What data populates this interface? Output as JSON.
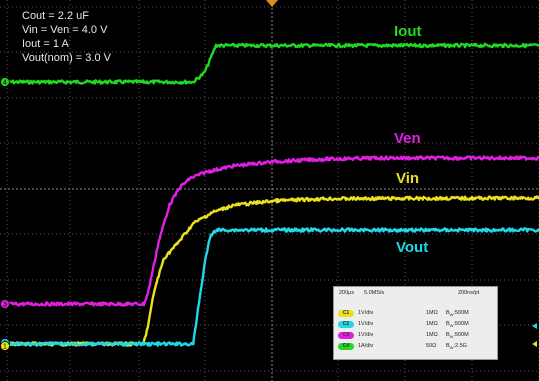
{
  "chart_data": {
    "type": "line",
    "title": "",
    "xlabel": "",
    "ylabel": "",
    "grid": true,
    "x_unit": "µs",
    "xlim": [
      -1000,
      1000
    ],
    "annotations": [
      "Cout = 2.2 uF",
      "Vin = Ven = 4.0 V",
      "Iout = 1 A",
      "Vout(nom) = 3.0 V"
    ],
    "series": [
      {
        "name": "Iout",
        "channel": "C4",
        "unit": "A",
        "scale_per_div": 1,
        "color": "#22d822",
        "x": [
          -1000,
          -300,
          -258,
          -237,
          -215,
          1000
        ],
        "y": [
          0,
          0,
          0.25,
          0.6,
          1.0,
          1.0
        ]
      },
      {
        "name": "Ven",
        "channel": "C3",
        "unit": "V",
        "scale_per_div": 1,
        "color": "#e020e0",
        "x": [
          -1000,
          -485,
          -470,
          -430,
          -390,
          -350,
          -310,
          -250,
          -150,
          0,
          200,
          400,
          1000
        ],
        "y": [
          0,
          0,
          0.3,
          1.7,
          2.7,
          3.2,
          3.45,
          3.62,
          3.78,
          3.9,
          3.97,
          4.0,
          4.0
        ]
      },
      {
        "name": "Vin",
        "channel": "C1",
        "unit": "V",
        "scale_per_div": 1,
        "color": "#e8e020",
        "x": [
          -1000,
          -487,
          -470,
          -445,
          -410,
          -360,
          -300,
          -230,
          -150,
          0,
          200,
          1000
        ],
        "y": [
          0,
          0,
          0.5,
          1.5,
          2.35,
          2.75,
          3.3,
          3.6,
          3.8,
          3.92,
          3.98,
          4.0
        ]
      },
      {
        "name": "Vout",
        "channel": "C2",
        "unit": "V",
        "scale_per_div": 1,
        "color": "#20d8e8",
        "x": [
          -1000,
          -300,
          -280,
          -255,
          -235,
          -215,
          0,
          1000
        ],
        "y": [
          0,
          0,
          1.0,
          2.2,
          2.85,
          3.0,
          3.0,
          3.0
        ]
      }
    ]
  },
  "scope": {
    "timebase": "200µs",
    "sample_rate": "5.0MS/s",
    "resolution": "200ns/pt",
    "channels": [
      {
        "badge": "C1",
        "scale": "1V/div",
        "impedance": "1MΩ",
        "bw_prefix": "B",
        "bw_sub": "W",
        "bw_value": ":500M",
        "color": "#e8e020"
      },
      {
        "badge": "C2",
        "scale": "1V/div",
        "impedance": "1MΩ",
        "bw_prefix": "B",
        "bw_sub": "W",
        "bw_value": ":500M",
        "color": "#20d8e8"
      },
      {
        "badge": "C3",
        "scale": "1V/div",
        "impedance": "1MΩ",
        "bw_prefix": "B",
        "bw_sub": "W",
        "bw_value": ":500M",
        "color": "#e020e0"
      },
      {
        "badge": "C4",
        "scale": "1A/div",
        "impedance": "50Ω",
        "bw_prefix": "B",
        "bw_sub": "W",
        "bw_value": ":2.5G",
        "color": "#22d822"
      }
    ],
    "ground_markers": [
      {
        "label": "4",
        "color": "#22d822"
      },
      {
        "label": "3",
        "color": "#e020e0"
      },
      {
        "label": "2",
        "color": "#20d8e8"
      },
      {
        "label": "1",
        "color": "#e8e020"
      }
    ]
  }
}
